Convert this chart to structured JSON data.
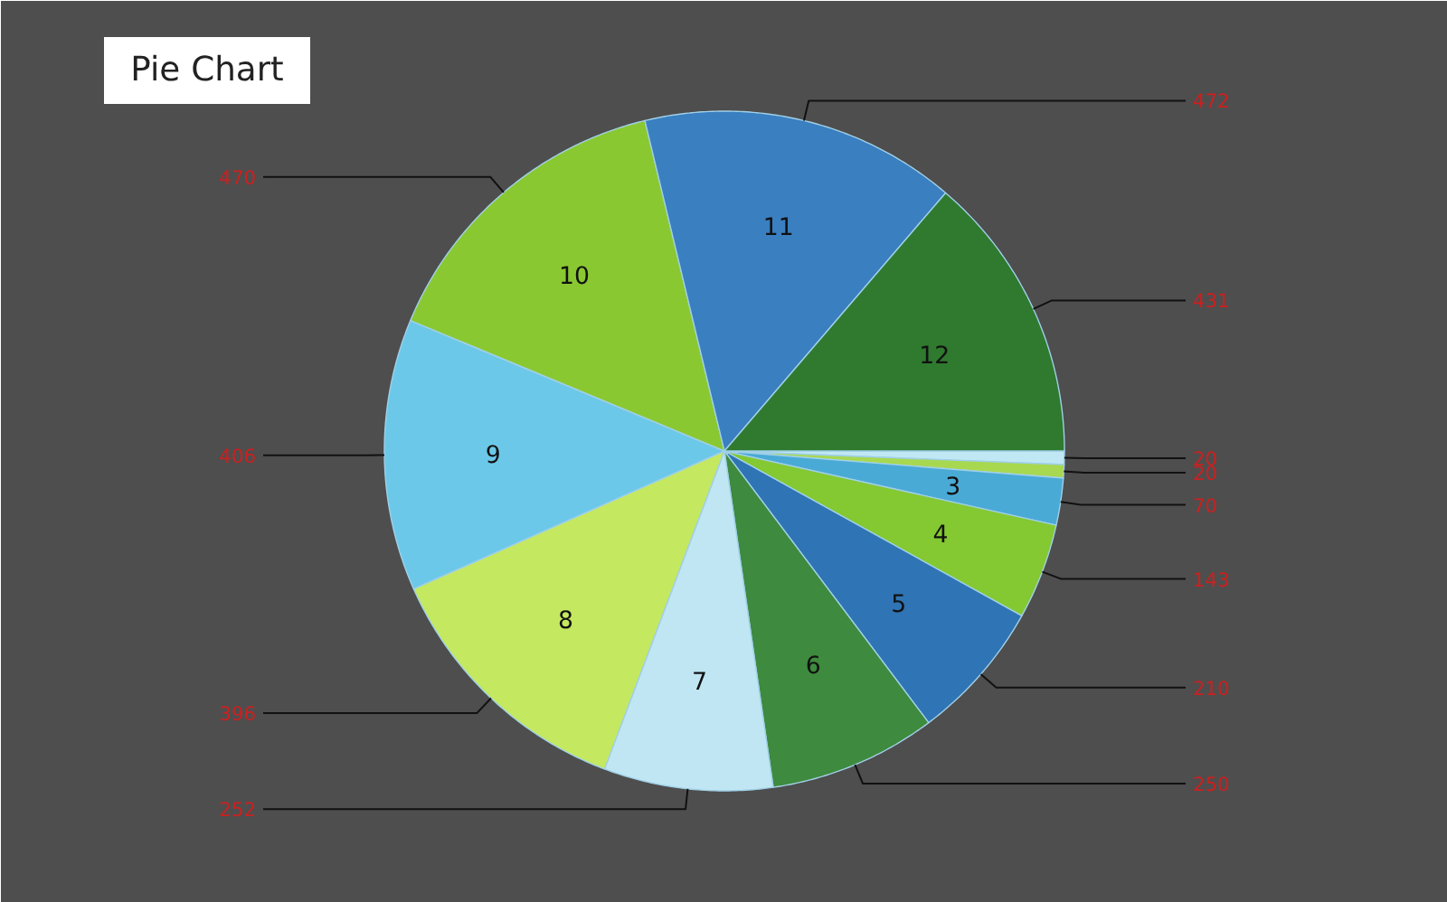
{
  "chart_data": {
    "type": "pie",
    "title": "Pie Chart",
    "categories": [
      null,
      null,
      "3",
      "4",
      "5",
      "6",
      "7",
      "8",
      "9",
      "10",
      "11",
      "12"
    ],
    "values": [
      20,
      20,
      70,
      143,
      210,
      250,
      252,
      396,
      406,
      470,
      472,
      431
    ],
    "colors": [
      "#c0e8f4",
      "#a8d850",
      "#4aaad6",
      "#84c832",
      "#2f74b4",
      "#3e8a3e",
      "#bfe6f2",
      "#c4e860",
      "#6cc8e8",
      "#8ac832",
      "#3a7fc0",
      "#2f7a2f"
    ],
    "data_labels": true
  }
}
